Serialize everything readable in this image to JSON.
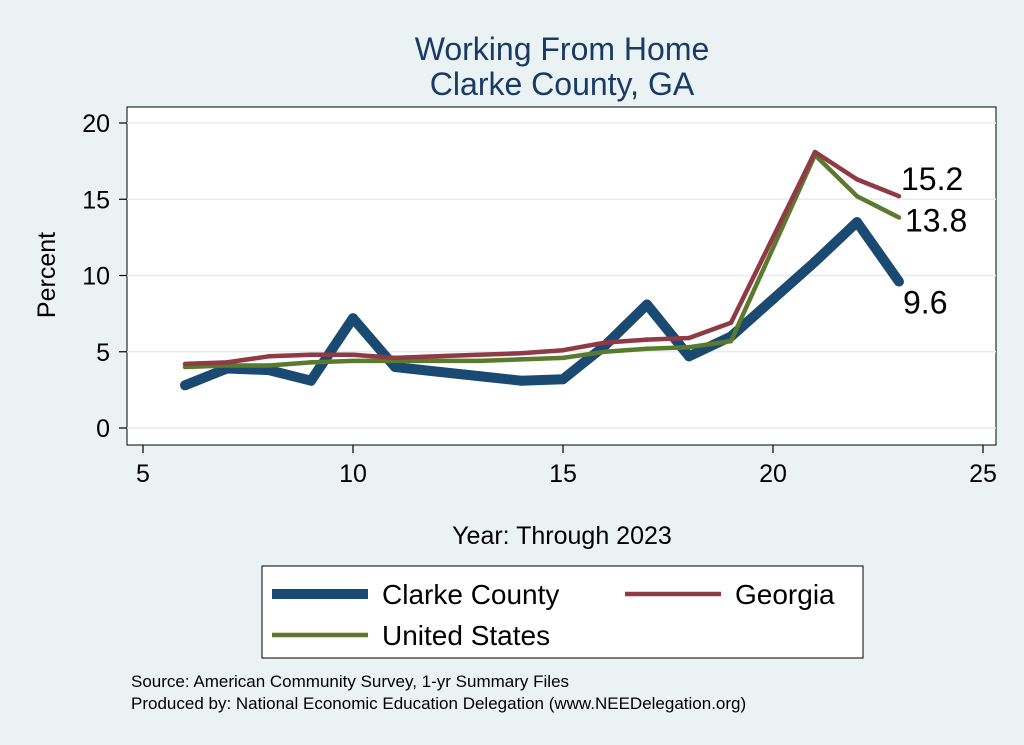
{
  "chart_data": {
    "type": "line",
    "title": "Working From Home",
    "subtitle": "Clarke County, GA",
    "xlabel": "Year: Through 2023",
    "ylabel": "Percent",
    "xlim": [
      5,
      25
    ],
    "ylim": [
      0,
      20
    ],
    "xticks": [
      5,
      10,
      15,
      20,
      25
    ],
    "yticks": [
      0,
      5,
      10,
      15,
      20
    ],
    "grid": true,
    "legend_position": "bottom",
    "series": [
      {
        "name": "Clarke County",
        "color": "#1a4a72",
        "x": [
          6,
          7,
          8,
          9,
          10,
          11,
          12,
          13,
          14,
          15,
          16,
          17,
          18,
          19,
          21,
          22,
          23
        ],
        "y": [
          2.8,
          3.9,
          3.8,
          3.1,
          7.2,
          4.0,
          3.7,
          3.4,
          3.1,
          3.2,
          5.4,
          8.1,
          4.7,
          6.0,
          10.9,
          13.5,
          9.6
        ],
        "end_label": "9.6"
      },
      {
        "name": "Georgia",
        "color": "#8f3a45",
        "x": [
          6,
          7,
          8,
          9,
          10,
          11,
          12,
          13,
          14,
          15,
          16,
          17,
          18,
          19,
          21,
          22,
          23
        ],
        "y": [
          4.2,
          4.3,
          4.7,
          4.8,
          4.8,
          4.6,
          4.7,
          4.8,
          4.9,
          5.1,
          5.6,
          5.8,
          5.9,
          6.9,
          18.1,
          16.3,
          15.2
        ],
        "end_label": "15.2"
      },
      {
        "name": "United States",
        "color": "#5a7a2e",
        "x": [
          6,
          7,
          8,
          9,
          10,
          11,
          12,
          13,
          14,
          15,
          16,
          17,
          18,
          19,
          21,
          22,
          23
        ],
        "y": [
          4.0,
          4.1,
          4.1,
          4.3,
          4.4,
          4.4,
          4.4,
          4.4,
          4.5,
          4.6,
          5.0,
          5.2,
          5.3,
          5.7,
          17.9,
          15.2,
          13.8
        ],
        "end_label": "13.8"
      }
    ]
  },
  "source_line": "Source: American Community Survey, 1-yr Summary Files",
  "producer_line": "Produced by: National Economic Education Delegation (www.NEEDelegation.org)"
}
